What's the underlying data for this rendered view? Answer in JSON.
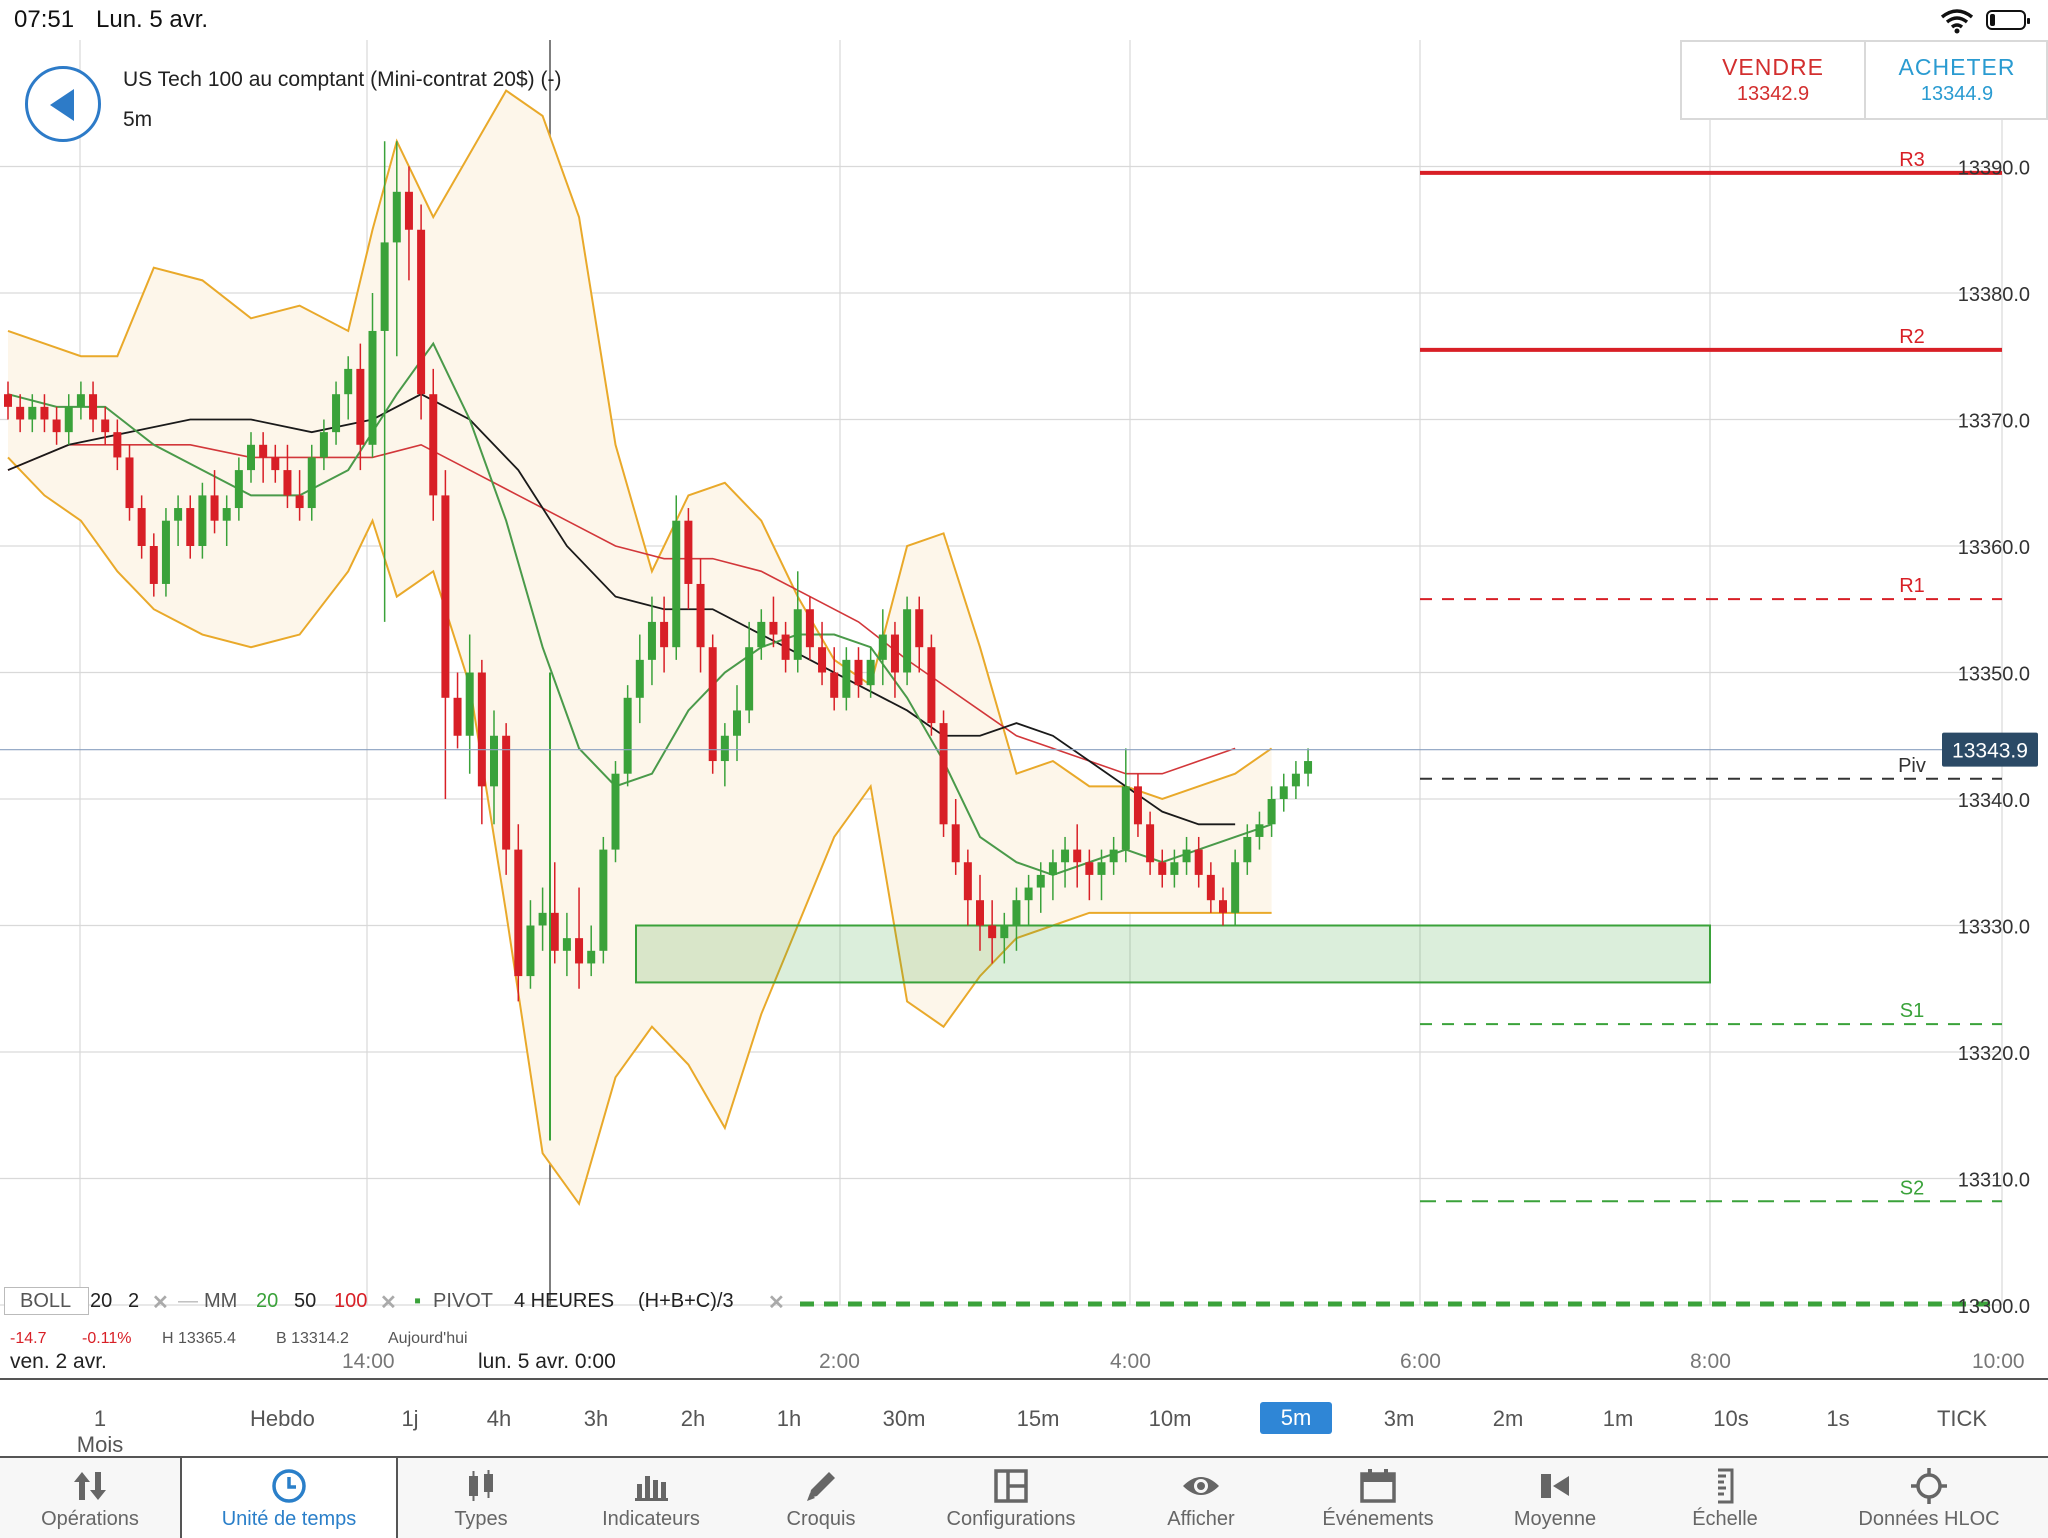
{
  "status": {
    "time": "07:51",
    "date": "Lun. 5 avr."
  },
  "instrument": {
    "title": "US Tech 100 au comptant (Mini-contrat 20$) (-)",
    "timeframe": "5m"
  },
  "trade": {
    "sell_label": "VENDRE",
    "sell_price": "13342.9",
    "buy_label": "ACHETER",
    "buy_price": "13344.9"
  },
  "colors": {
    "up": "#3aa23a",
    "down": "#d81f26",
    "boll": "#e9a92a",
    "ma20": "#4a9a4a",
    "ma50": "#1a1a1a",
    "ma100": "#d2373a",
    "accent": "#2f86d6"
  },
  "chart_data": {
    "type": "candlestick",
    "ylim": [
      13300.0,
      13395.0
    ],
    "y_ticks": [
      "13390.0",
      "13380.0",
      "13370.0",
      "13360.0",
      "13350.0",
      "13340.0",
      "13330.0",
      "13320.0",
      "13310.0",
      "13300.0"
    ],
    "x_ticks": [
      "14:00",
      "2:00",
      "4:00",
      "6:00",
      "8:00",
      "10:00"
    ],
    "current_price": "13343.9",
    "pivots": [
      {
        "label": "R3",
        "value": 13389.5,
        "style": "solid",
        "color": "#d81f26"
      },
      {
        "label": "R2",
        "value": 13375.5,
        "style": "solid",
        "color": "#d81f26"
      },
      {
        "label": "R1",
        "value": 13355.8,
        "style": "dashed",
        "color": "#d81f26"
      },
      {
        "label": "Piv",
        "value": 13341.6,
        "style": "dashed",
        "color": "#333333"
      },
      {
        "label": "S1",
        "value": 13322.2,
        "style": "dashed",
        "color": "#3aa23a"
      },
      {
        "label": "S2",
        "value": 13308.2,
        "style": "dashed",
        "color": "#3aa23a"
      }
    ],
    "support_zone": [
      13325.5,
      13330.0
    ],
    "candles": [
      [
        13372,
        13373,
        13370,
        13371
      ],
      [
        13371,
        13372,
        13369,
        13370
      ],
      [
        13370,
        13372,
        13369,
        13371
      ],
      [
        13371,
        13372,
        13369,
        13370
      ],
      [
        13370,
        13371,
        13368,
        13369
      ],
      [
        13369,
        13372,
        13368,
        13371
      ],
      [
        13371,
        13373,
        13370,
        13372
      ],
      [
        13372,
        13373,
        13369,
        13370
      ],
      [
        13370,
        13371,
        13368,
        13369
      ],
      [
        13369,
        13370,
        13366,
        13367
      ],
      [
        13367,
        13368,
        13362,
        13363
      ],
      [
        13363,
        13364,
        13359,
        13360
      ],
      [
        13360,
        13361,
        13356,
        13357
      ],
      [
        13357,
        13363,
        13356,
        13362
      ],
      [
        13362,
        13364,
        13360,
        13363
      ],
      [
        13363,
        13364,
        13359,
        13360
      ],
      [
        13360,
        13365,
        13359,
        13364
      ],
      [
        13364,
        13366,
        13361,
        13362
      ],
      [
        13362,
        13364,
        13360,
        13363
      ],
      [
        13363,
        13367,
        13362,
        13366
      ],
      [
        13366,
        13369,
        13365,
        13368
      ],
      [
        13368,
        13369,
        13365,
        13367
      ],
      [
        13367,
        13368,
        13365,
        13366
      ],
      [
        13366,
        13368,
        13363,
        13364
      ],
      [
        13364,
        13366,
        13362,
        13363
      ],
      [
        13363,
        13368,
        13362,
        13367
      ],
      [
        13367,
        13370,
        13366,
        13369
      ],
      [
        13369,
        13373,
        13368,
        13372
      ],
      [
        13372,
        13375,
        13370,
        13374
      ],
      [
        13374,
        13376,
        13366,
        13368
      ],
      [
        13368,
        13380,
        13367,
        13377
      ],
      [
        13377,
        13392,
        13354,
        13384
      ],
      [
        13384,
        13392,
        13375,
        13388
      ],
      [
        13388,
        13390,
        13381,
        13385
      ],
      [
        13385,
        13387,
        13370,
        13372
      ],
      [
        13372,
        13374,
        13362,
        13364
      ],
      [
        13364,
        13366,
        13340,
        13348
      ],
      [
        13348,
        13350,
        13344,
        13345
      ],
      [
        13345,
        13353,
        13342,
        13350
      ],
      [
        13350,
        13351,
        13338,
        13341
      ],
      [
        13341,
        13347,
        13338,
        13345
      ],
      [
        13345,
        13346,
        13334,
        13336
      ],
      [
        13336,
        13338,
        13324,
        13326
      ],
      [
        13326,
        13332,
        13325,
        13330
      ],
      [
        13330,
        13333,
        13328,
        13331
      ],
      [
        13331,
        13335,
        13327,
        13328
      ],
      [
        13328,
        13331,
        13326,
        13329
      ],
      [
        13329,
        13333,
        13325,
        13327
      ],
      [
        13327,
        13330,
        13326,
        13328
      ],
      [
        13328,
        13337,
        13327,
        13336
      ],
      [
        13336,
        13343,
        13335,
        13342
      ],
      [
        13342,
        13349,
        13341,
        13348
      ],
      [
        13348,
        13353,
        13346,
        13351
      ],
      [
        13351,
        13356,
        13349,
        13354
      ],
      [
        13354,
        13356,
        13350,
        13352
      ],
      [
        13352,
        13364,
        13351,
        13362
      ],
      [
        13362,
        13363,
        13355,
        13357
      ],
      [
        13357,
        13359,
        13350,
        13352
      ],
      [
        13352,
        13353,
        13342,
        13343
      ],
      [
        13343,
        13346,
        13341,
        13345
      ],
      [
        13345,
        13349,
        13343,
        13347
      ],
      [
        13347,
        13354,
        13346,
        13352
      ],
      [
        13352,
        13355,
        13351,
        13354
      ],
      [
        13354,
        13356,
        13352,
        13353
      ],
      [
        13353,
        13354,
        13350,
        13351
      ],
      [
        13351,
        13358,
        13350,
        13355
      ],
      [
        13355,
        13356,
        13351,
        13352
      ],
      [
        13352,
        13354,
        13349,
        13350
      ],
      [
        13350,
        13352,
        13347,
        13348
      ],
      [
        13348,
        13352,
        13347,
        13351
      ],
      [
        13351,
        13352,
        13348,
        13349
      ],
      [
        13349,
        13352,
        13348,
        13351
      ],
      [
        13351,
        13355,
        13349,
        13353
      ],
      [
        13353,
        13354,
        13348,
        13350
      ],
      [
        13350,
        13356,
        13349,
        13355
      ],
      [
        13355,
        13356,
        13350,
        13352
      ],
      [
        13352,
        13353,
        13345,
        13346
      ],
      [
        13346,
        13347,
        13337,
        13338
      ],
      [
        13338,
        13340,
        13334,
        13335
      ],
      [
        13335,
        13336,
        13330,
        13332
      ],
      [
        13332,
        13334,
        13328,
        13330
      ],
      [
        13330,
        13332,
        13327,
        13329
      ],
      [
        13329,
        13331,
        13327,
        13330
      ],
      [
        13330,
        13333,
        13328,
        13332
      ],
      [
        13332,
        13334,
        13330,
        13333
      ],
      [
        13333,
        13335,
        13331,
        13334
      ],
      [
        13334,
        13336,
        13332,
        13335
      ],
      [
        13335,
        13337,
        13333,
        13336
      ],
      [
        13336,
        13338,
        13333,
        13335
      ],
      [
        13335,
        13336,
        13332,
        13334
      ],
      [
        13334,
        13336,
        13332,
        13335
      ],
      [
        13335,
        13337,
        13334,
        13336
      ],
      [
        13336,
        13344,
        13335,
        13341
      ],
      [
        13341,
        13342,
        13337,
        13338
      ],
      [
        13338,
        13339,
        13334,
        13335
      ],
      [
        13335,
        13336,
        13333,
        13334
      ],
      [
        13334,
        13336,
        13333,
        13335
      ],
      [
        13335,
        13337,
        13334,
        13336
      ],
      [
        13336,
        13337,
        13333,
        13334
      ],
      [
        13334,
        13335,
        13331,
        13332
      ],
      [
        13332,
        13333,
        13330,
        13331
      ],
      [
        13331,
        13336,
        13330,
        13335
      ],
      [
        13335,
        13338,
        13334,
        13337
      ],
      [
        13337,
        13339,
        13336,
        13338
      ],
      [
        13338,
        13341,
        13337,
        13340
      ],
      [
        13340,
        13342,
        13339,
        13341
      ],
      [
        13341,
        13343,
        13340,
        13342
      ],
      [
        13342,
        13344,
        13341,
        13343
      ]
    ],
    "boll_upper": [
      [
        0,
        13377
      ],
      [
        3,
        13376
      ],
      [
        6,
        13375
      ],
      [
        9,
        13375
      ],
      [
        12,
        13382
      ],
      [
        16,
        13381
      ],
      [
        20,
        13378
      ],
      [
        24,
        13379
      ],
      [
        28,
        13377
      ],
      [
        30,
        13385
      ],
      [
        32,
        13392
      ],
      [
        35,
        13386
      ],
      [
        38,
        13391
      ],
      [
        41,
        13396
      ],
      [
        44,
        13394
      ],
      [
        47,
        13386
      ],
      [
        50,
        13368
      ],
      [
        53,
        13358
      ],
      [
        56,
        13364
      ],
      [
        59,
        13365
      ],
      [
        62,
        13362
      ],
      [
        65,
        13356
      ],
      [
        68,
        13351
      ],
      [
        71,
        13349
      ],
      [
        74,
        13360
      ],
      [
        77,
        13361
      ],
      [
        80,
        13352
      ],
      [
        83,
        13342
      ],
      [
        86,
        13343
      ],
      [
        89,
        13341
      ],
      [
        92,
        13341
      ],
      [
        95,
        13340
      ],
      [
        98,
        13341
      ],
      [
        101,
        13342
      ],
      [
        104,
        13344
      ]
    ],
    "boll_lower": [
      [
        0,
        13367
      ],
      [
        3,
        13364
      ],
      [
        6,
        13362
      ],
      [
        9,
        13358
      ],
      [
        12,
        13355
      ],
      [
        16,
        13353
      ],
      [
        20,
        13352
      ],
      [
        24,
        13353
      ],
      [
        28,
        13358
      ],
      [
        30,
        13362
      ],
      [
        32,
        13356
      ],
      [
        35,
        13358
      ],
      [
        38,
        13349
      ],
      [
        41,
        13331
      ],
      [
        44,
        13312
      ],
      [
        47,
        13308
      ],
      [
        50,
        13318
      ],
      [
        53,
        13322
      ],
      [
        56,
        13319
      ],
      [
        59,
        13314
      ],
      [
        62,
        13323
      ],
      [
        65,
        13330
      ],
      [
        68,
        13337
      ],
      [
        71,
        13341
      ],
      [
        74,
        13324
      ],
      [
        77,
        13322
      ],
      [
        80,
        13326
      ],
      [
        83,
        13329
      ],
      [
        86,
        13330
      ],
      [
        89,
        13331
      ],
      [
        92,
        13331
      ],
      [
        95,
        13331
      ],
      [
        98,
        13331
      ],
      [
        101,
        13331
      ],
      [
        104,
        13331
      ]
    ],
    "ma20": [
      [
        0,
        13372
      ],
      [
        4,
        13371
      ],
      [
        8,
        13371
      ],
      [
        12,
        13368
      ],
      [
        16,
        13366
      ],
      [
        20,
        13364
      ],
      [
        24,
        13364
      ],
      [
        28,
        13366
      ],
      [
        32,
        13372
      ],
      [
        35,
        13376
      ],
      [
        38,
        13370
      ],
      [
        41,
        13362
      ],
      [
        44,
        13352
      ],
      [
        47,
        13344
      ],
      [
        50,
        13341
      ],
      [
        53,
        13342
      ],
      [
        56,
        13347
      ],
      [
        59,
        13350
      ],
      [
        62,
        13352
      ],
      [
        65,
        13353
      ],
      [
        68,
        13353
      ],
      [
        71,
        13352
      ],
      [
        74,
        13348
      ],
      [
        77,
        13343
      ],
      [
        80,
        13337
      ],
      [
        83,
        13335
      ],
      [
        86,
        13334
      ],
      [
        89,
        13335
      ],
      [
        92,
        13336
      ],
      [
        95,
        13335
      ],
      [
        98,
        13336
      ],
      [
        101,
        13337
      ],
      [
        104,
        13338
      ]
    ],
    "ma50": [
      [
        0,
        13366
      ],
      [
        5,
        13368
      ],
      [
        10,
        13369
      ],
      [
        15,
        13370
      ],
      [
        20,
        13370
      ],
      [
        25,
        13369
      ],
      [
        30,
        13370
      ],
      [
        34,
        13372
      ],
      [
        38,
        13370
      ],
      [
        42,
        13366
      ],
      [
        46,
        13360
      ],
      [
        50,
        13356
      ],
      [
        54,
        13355
      ],
      [
        58,
        13355
      ],
      [
        62,
        13353
      ],
      [
        66,
        13351
      ],
      [
        70,
        13349
      ],
      [
        74,
        13347
      ],
      [
        77,
        13345
      ],
      [
        80,
        13345
      ],
      [
        83,
        13346
      ],
      [
        86,
        13345
      ],
      [
        89,
        13343
      ],
      [
        92,
        13341
      ],
      [
        95,
        13339
      ],
      [
        98,
        13338
      ],
      [
        101,
        13338
      ]
    ],
    "ma100": [
      [
        0,
        13366
      ],
      [
        5,
        13368
      ],
      [
        10,
        13368
      ],
      [
        15,
        13368
      ],
      [
        20,
        13367
      ],
      [
        25,
        13367
      ],
      [
        30,
        13367
      ],
      [
        34,
        13368
      ],
      [
        38,
        13366
      ],
      [
        42,
        13364
      ],
      [
        46,
        13362
      ],
      [
        50,
        13360
      ],
      [
        54,
        13359
      ],
      [
        58,
        13359
      ],
      [
        62,
        13358
      ],
      [
        66,
        13356
      ],
      [
        70,
        13354
      ],
      [
        74,
        13351
      ],
      [
        77,
        13349
      ],
      [
        80,
        13347
      ],
      [
        83,
        13345
      ],
      [
        86,
        13344
      ],
      [
        89,
        13343
      ],
      [
        92,
        13342
      ],
      [
        95,
        13342
      ],
      [
        98,
        13343
      ],
      [
        101,
        13344
      ]
    ]
  },
  "legend": {
    "boll_label": "BOLL",
    "boll_p1": "20",
    "boll_p2": "2",
    "ma_label": "MM",
    "ma_p1": "20",
    "ma_p2": "50",
    "ma_p3": "100",
    "pivot_label": "PIVOT",
    "pivot_p1": "4 HEURES",
    "pivot_p2": "(H+B+C)/3",
    "sub1": "-14.7",
    "sub2": "-0.11%",
    "sub3": "H 13365.4",
    "sub4": "B 13314.2",
    "sub5": "Aujourd'hui"
  },
  "datebar": {
    "left": "ven. 2 avr.",
    "box": "lun. 5 avr. 0:00"
  },
  "timeframes": [
    "1 Mois",
    "Hebdo",
    "1j",
    "4h",
    "3h",
    "2h",
    "1h",
    "30m",
    "15m",
    "10m",
    "5m",
    "3m",
    "2m",
    "1m",
    "10s",
    "1s",
    "TICK"
  ],
  "tf_active_index": 10,
  "toolbar": {
    "operations": "Opérations",
    "timeunit": "Unité de temps",
    "types": "Types",
    "indicators": "Indicateurs",
    "sketch": "Croquis",
    "configs": "Configurations",
    "show": "Afficher",
    "events": "Événements",
    "average": "Moyenne",
    "scale": "Échelle",
    "hloc": "Données HLOC"
  }
}
